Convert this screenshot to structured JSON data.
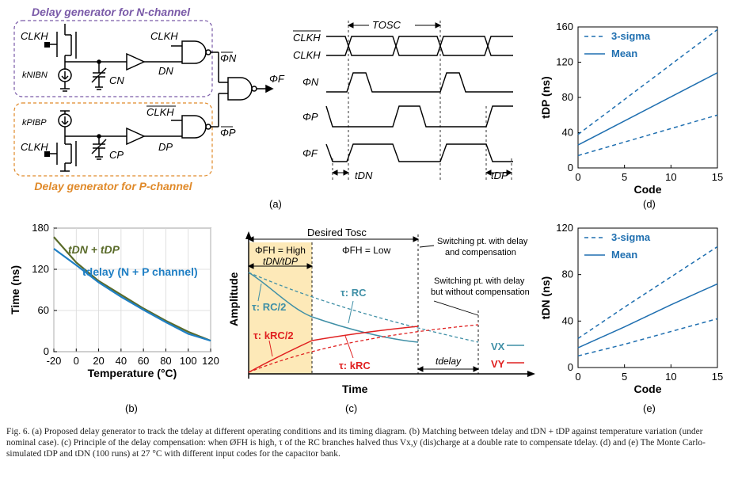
{
  "figure": {
    "panel_a": {
      "label": "(a)",
      "n_box_title": "Delay generator for N-channel",
      "p_box_title": "Delay generator for P-channel",
      "n_clk": "CLKH",
      "n_clk_gate": "CLKH",
      "n_source": "kNIBN",
      "n_cap": "CN",
      "n_node": "DN",
      "n_out": "ΦN",
      "p_clk": "CLKH",
      "p_clk_gate": "CLKH",
      "p_source": "kPIBP",
      "p_cap": "CP",
      "p_node": "DP",
      "p_out": "ΦP",
      "final_out": "ΦF",
      "timing": {
        "tosc": "TOSC",
        "clkb": "CLKH",
        "clk": "CLKH",
        "phin": "ΦN",
        "phip": "ΦP",
        "phif": "ΦF",
        "tdn": "tDN",
        "tdp": "tDP"
      }
    },
    "panel_b": {
      "label": "(b)",
      "legend_sum": "tDN + tDP",
      "legend_delay": "tdelay (N + P channel)"
    },
    "panel_c": {
      "label": "(c)",
      "desired": "Desired Tosc",
      "phase_high": "ΦFH = High",
      "phase_low": "ΦFH = Low",
      "tdn_tdp": "tDN/tDP",
      "switch_comp": "Switching pt. with delay",
      "switch_comp2": "and compensation",
      "switch_nocomp": "Switching pt. with delay",
      "switch_nocomp2": "but without compensation",
      "tau_rc": "τ: RC",
      "tau_rc2": "τ: RC/2",
      "tau_krc2": "τ: kRC/2",
      "tau_krc": "τ: kRC",
      "vx": "VX",
      "vy": "VY",
      "tdelay": "tdelay",
      "xlabel": "Time",
      "ylabel": "Amplitude"
    },
    "panel_d": {
      "label": "(d)"
    },
    "panel_e": {
      "label": "(e)"
    }
  },
  "chart_data": [
    {
      "panel": "b",
      "type": "line",
      "xlabel": "Temperature (°C)",
      "ylabel": "Time (ns)",
      "xlim": [
        -20,
        120
      ],
      "ylim": [
        0,
        180
      ],
      "xticks": [
        -20,
        0,
        20,
        40,
        60,
        80,
        100,
        120
      ],
      "yticks": [
        0,
        60,
        120,
        180
      ],
      "series": [
        {
          "name": "tDN + tDP",
          "color": "#5a6b2a",
          "x": [
            -20,
            0,
            20,
            40,
            60,
            80,
            100,
            120
          ],
          "y": [
            167,
            130,
            103,
            83,
            63,
            45,
            29,
            16
          ]
        },
        {
          "name": "tdelay (N + P channel)",
          "color": "#1f7fc4",
          "x": [
            -20,
            0,
            20,
            40,
            60,
            80,
            100,
            120
          ],
          "y": [
            150,
            126,
            101,
            80,
            61,
            43,
            26,
            16
          ]
        }
      ]
    },
    {
      "panel": "d",
      "type": "line",
      "xlabel": "Code",
      "ylabel": "tDP (ns)",
      "xlim": [
        0,
        15
      ],
      "ylim": [
        0,
        160
      ],
      "xticks": [
        0,
        5,
        10,
        15
      ],
      "yticks": [
        0,
        40,
        80,
        120,
        160
      ],
      "legend": [
        "3-sigma",
        "Mean"
      ],
      "series": [
        {
          "name": "3-sigma",
          "style": "dashed",
          "x": [
            0,
            15
          ],
          "y": [
            38,
            157
          ]
        },
        {
          "name": "Mean",
          "style": "solid",
          "x": [
            0,
            15
          ],
          "y": [
            26,
            108
          ]
        },
        {
          "name": "3-sigma",
          "style": "dashed",
          "x": [
            0,
            15
          ],
          "y": [
            14,
            60
          ]
        }
      ]
    },
    {
      "panel": "e",
      "type": "line",
      "xlabel": "Code",
      "ylabel": "tDN (ns)",
      "xlim": [
        0,
        15
      ],
      "ylim": [
        0,
        120
      ],
      "xticks": [
        0,
        5,
        10,
        15
      ],
      "yticks": [
        0,
        40,
        80,
        120
      ],
      "legend": [
        "3-sigma",
        "Mean"
      ],
      "series": [
        {
          "name": "3-sigma",
          "style": "dashed",
          "x": [
            0,
            5,
            10,
            15
          ],
          "y": [
            25,
            52,
            78,
            104
          ]
        },
        {
          "name": "Mean",
          "style": "solid",
          "x": [
            0,
            5,
            10,
            15
          ],
          "y": [
            17,
            35,
            54,
            72
          ]
        },
        {
          "name": "3-sigma",
          "style": "dashed",
          "x": [
            0,
            5,
            10,
            15
          ],
          "y": [
            10,
            20,
            31,
            42
          ]
        }
      ]
    }
  ],
  "caption": {
    "text": "Fig. 6.   (a) Proposed delay generator to track the tdelay at different operating conditions and its timing diagram. (b) Matching between tdelay and tDN + tDP against temperature variation (under nominal case). (c) Principle of the delay compensation: when ØFH is high, τ of the RC branches halved thus Vx,y (dis)charge at a double rate to compensate tdelay. (d) and (e) The Monte Carlo-simulated tDP and tDN (100 runs) at 27 °C with different input codes for the capacitor bank."
  }
}
